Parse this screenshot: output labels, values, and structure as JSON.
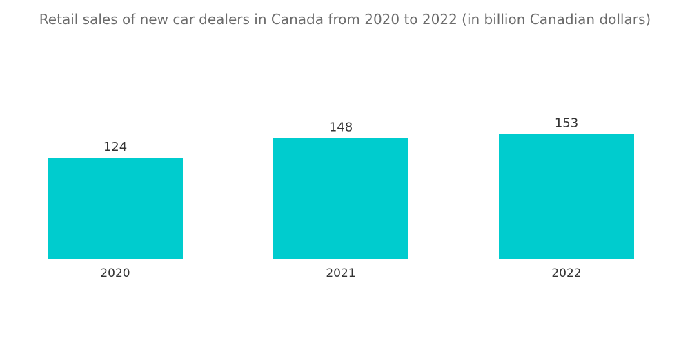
{
  "chart_data": {
    "type": "bar",
    "title": "Retail sales of new car dealers in Canada from 2020 to 2022 (in billion Canadian dollars)",
    "categories": [
      "2020",
      "2021",
      "2022"
    ],
    "values": [
      124,
      148,
      153
    ],
    "xlabel": "",
    "ylabel": "",
    "data_labels": [
      "124",
      "148",
      "153"
    ],
    "grid": false,
    "legend": "none",
    "bar_color": "#00CCCE"
  }
}
